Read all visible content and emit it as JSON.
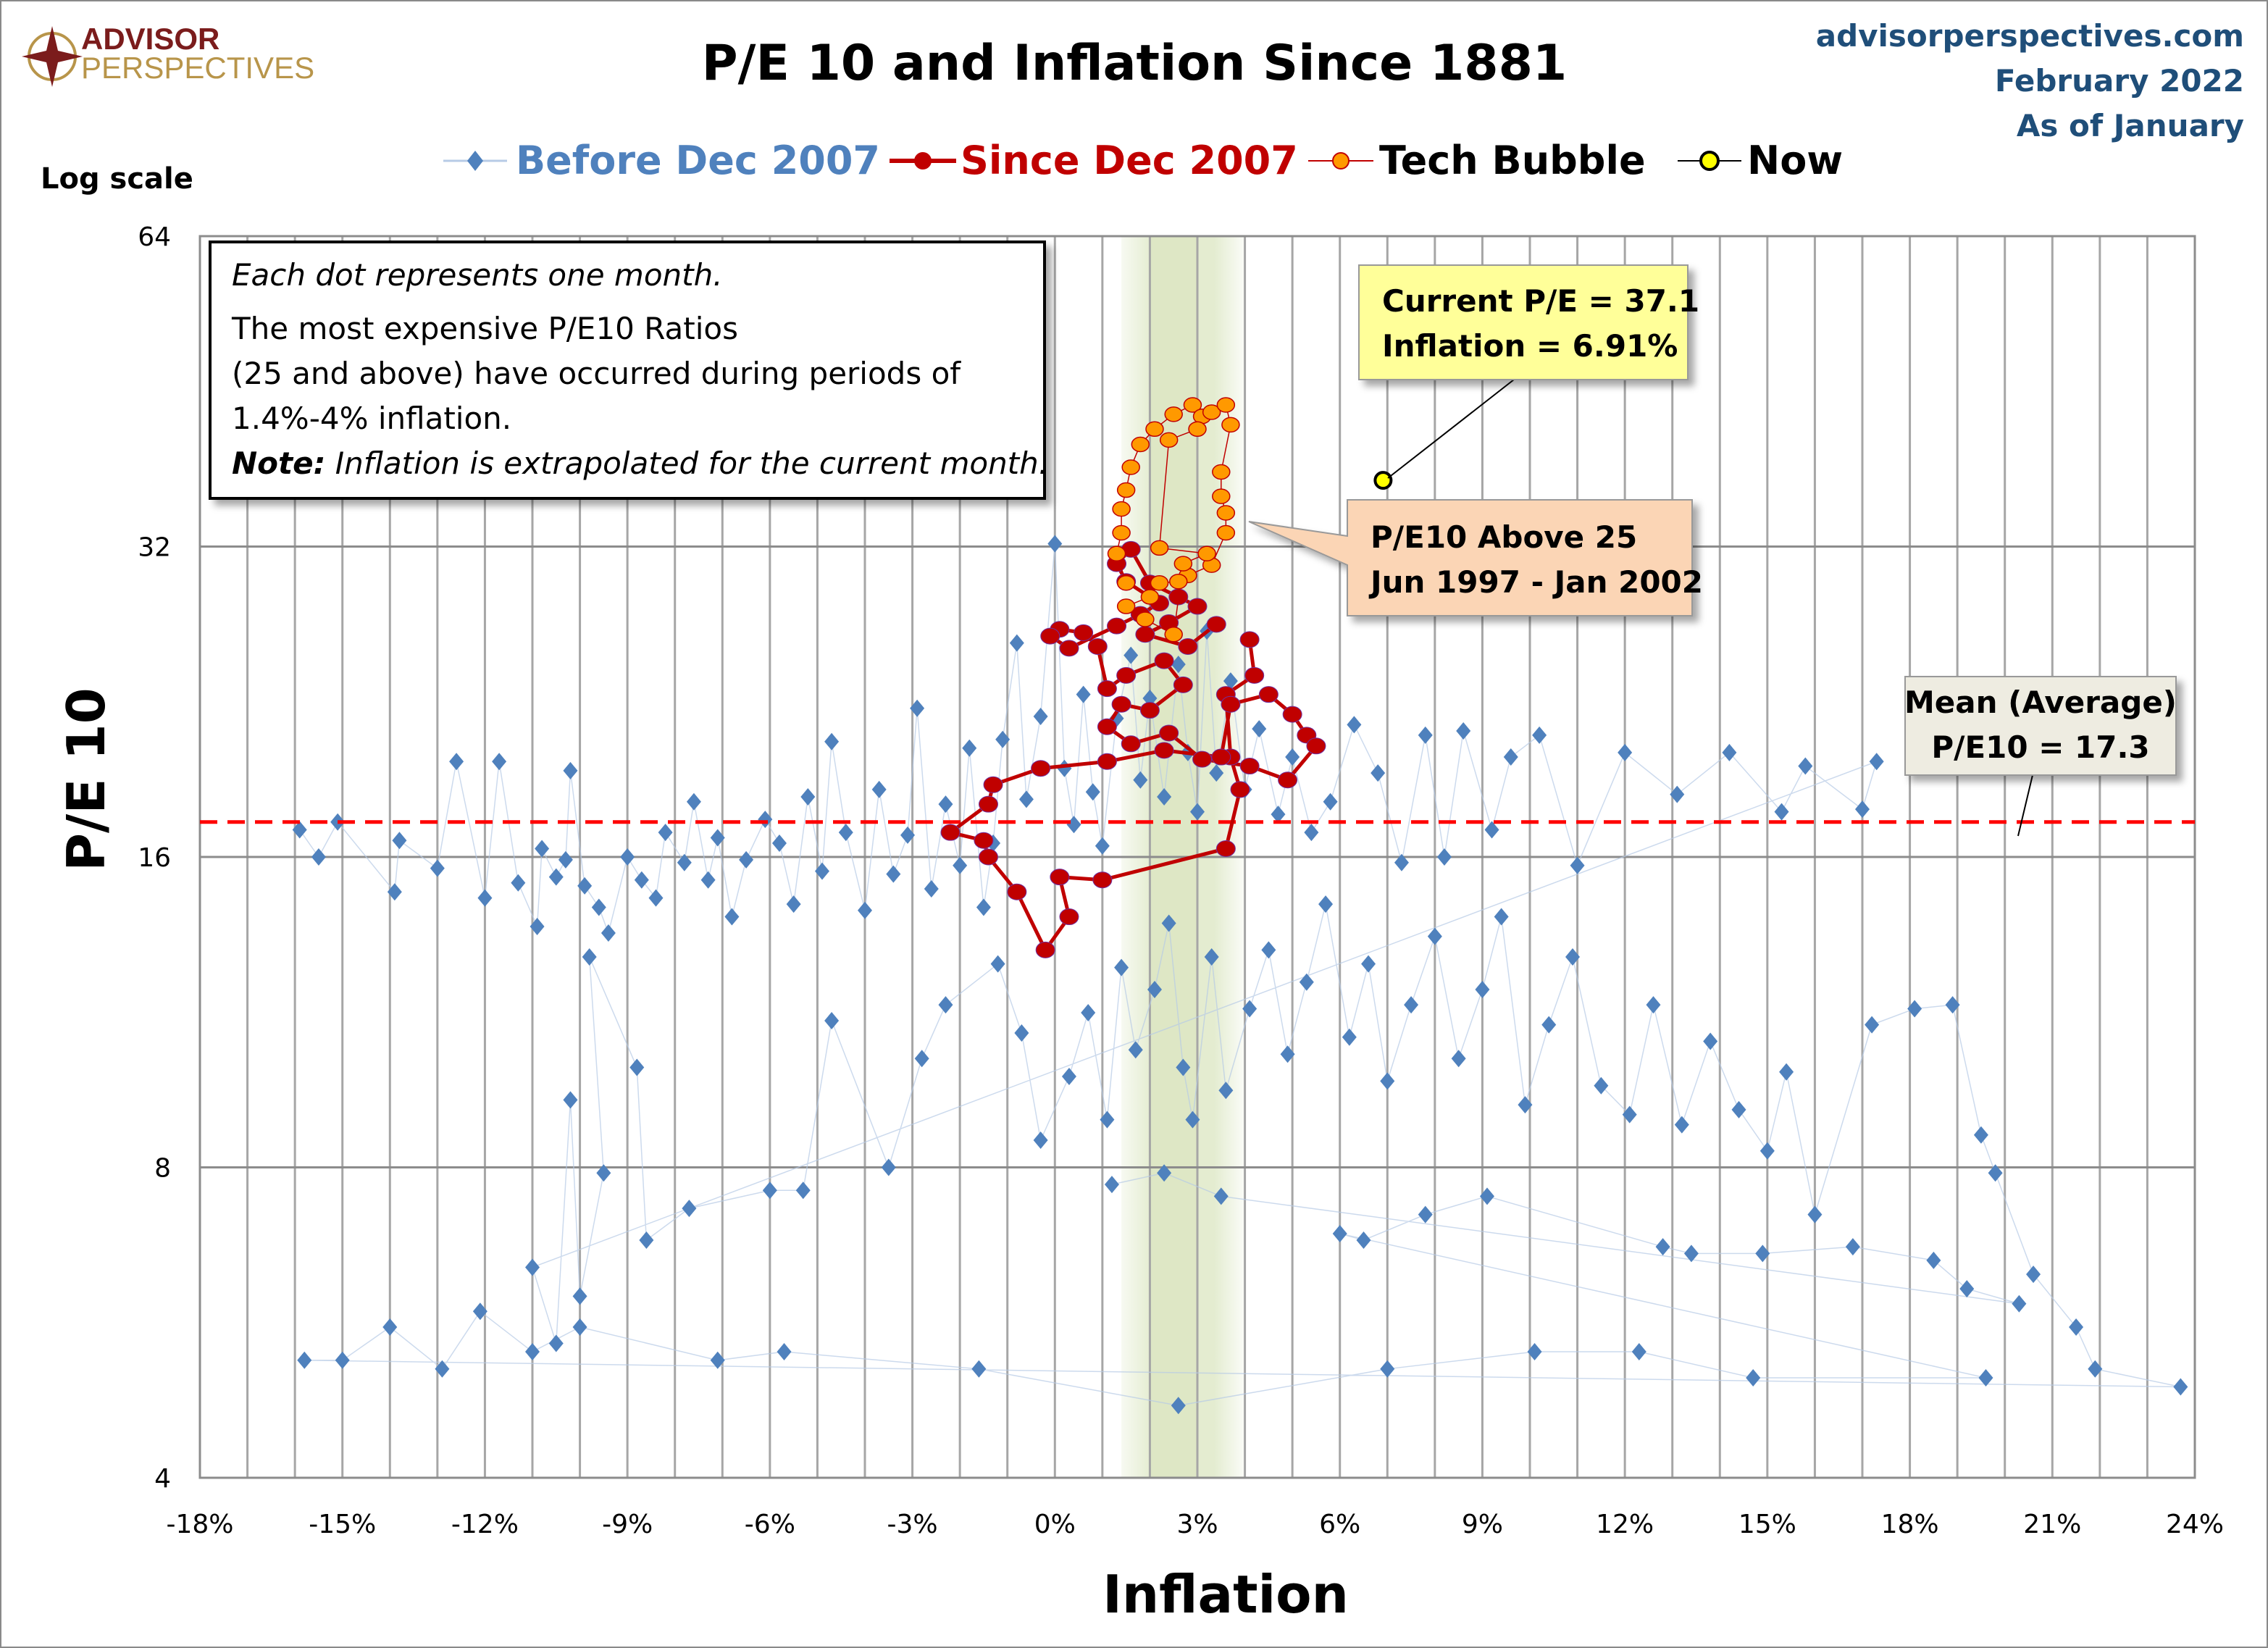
{
  "header": {
    "logo_line1": "ADVISOR",
    "logo_line2": "PERSPECTIVES",
    "site": "advisorperspectives.com",
    "date": "February 2022",
    "as_of": "As of January"
  },
  "colors": {
    "before": "#4f81bd",
    "since": "#c00000",
    "tech": "#ff9900",
    "now": "#ffff00",
    "mean_line": "#ff0000",
    "band": "#d8e4bc",
    "site_text": "#1f4e79",
    "logo_red": "#7b1c1c",
    "logo_gold": "#b8954a"
  },
  "annotations": {
    "box_line1": "Each dot represents one month.",
    "box_line2": "The most expensive P/E10 Ratios",
    "box_line3": "(25 and above) have occurred during periods of",
    "box_line4": "1.4%-4% inflation.",
    "box_note_label": "Note:",
    "box_note_text": " Inflation is extrapolated for the current month.",
    "current_line1": "Current P/E = 37.1",
    "current_line2": "Inflation = 6.91%",
    "bubble_line1": "P/E10 Above 25",
    "bubble_line2": "Jun 1997 - Jan 2002",
    "mean_line1": "Mean (Average)",
    "mean_line2": "P/E10 = 17.3"
  },
  "chart_data": {
    "type": "scatter",
    "title": "P/E 10 and Inflation Since 1881",
    "xlabel": "Inflation",
    "ylabel": "P/E 10",
    "y_scale_note": "Log scale",
    "y_scale": "log2",
    "xlim": [
      -18,
      24
    ],
    "ylim": [
      4,
      64
    ],
    "x_ticks": [
      "-18%",
      "-15%",
      "-12%",
      "-9%",
      "-6%",
      "-3%",
      "0%",
      "3%",
      "6%",
      "9%",
      "12%",
      "15%",
      "18%",
      "21%",
      "24%"
    ],
    "x_tick_values": [
      -18,
      -15,
      -12,
      -9,
      -6,
      -3,
      0,
      3,
      6,
      9,
      12,
      15,
      18,
      21,
      24
    ],
    "y_ticks": [
      "4",
      "8",
      "16",
      "32",
      "64"
    ],
    "y_tick_values": [
      4,
      8,
      16,
      32,
      64
    ],
    "grid": true,
    "legend_position": "top",
    "highlight_band": {
      "from": 1.4,
      "to": 4.0,
      "core_from": 2.0,
      "core_to": 3.0
    },
    "mean": 17.3,
    "series": [
      {
        "name": "Before Dec 2007",
        "marker": "diamond",
        "points": [
          [
            -15.9,
            17.0
          ],
          [
            -15.5,
            16.0
          ],
          [
            -15.1,
            17.3
          ],
          [
            -13.9,
            14.8
          ],
          [
            -13.8,
            16.6
          ],
          [
            -13.0,
            15.6
          ],
          [
            -12.6,
            19.8
          ],
          [
            -12.0,
            14.6
          ],
          [
            -11.7,
            19.8
          ],
          [
            -11.3,
            15.1
          ],
          [
            -10.9,
            13.7
          ],
          [
            -10.8,
            16.3
          ],
          [
            -10.5,
            15.3
          ],
          [
            -10.3,
            15.9
          ],
          [
            -10.2,
            19.4
          ],
          [
            -9.9,
            15.0
          ],
          [
            -9.6,
            14.3
          ],
          [
            -9.4,
            13.5
          ],
          [
            -9.0,
            16.0
          ],
          [
            -8.7,
            15.2
          ],
          [
            -8.4,
            14.6
          ],
          [
            -8.2,
            16.9
          ],
          [
            -7.8,
            15.8
          ],
          [
            -7.6,
            18.1
          ],
          [
            -7.3,
            15.2
          ],
          [
            -7.1,
            16.7
          ],
          [
            -6.8,
            14.0
          ],
          [
            -6.5,
            15.9
          ],
          [
            -6.1,
            17.4
          ],
          [
            -5.8,
            16.5
          ],
          [
            -5.5,
            14.4
          ],
          [
            -5.2,
            18.3
          ],
          [
            -4.9,
            15.5
          ],
          [
            -4.7,
            20.7
          ],
          [
            -4.4,
            16.9
          ],
          [
            -4.0,
            14.2
          ],
          [
            -3.7,
            18.6
          ],
          [
            -3.4,
            15.4
          ],
          [
            -3.1,
            16.8
          ],
          [
            -2.9,
            22.3
          ],
          [
            -2.6,
            14.9
          ],
          [
            -2.3,
            18.0
          ],
          [
            -2.0,
            15.7
          ],
          [
            -1.8,
            20.4
          ],
          [
            -1.5,
            14.3
          ],
          [
            -1.3,
            16.5
          ],
          [
            -1.1,
            20.8
          ],
          [
            -0.8,
            25.8
          ],
          [
            -0.6,
            18.2
          ],
          [
            -0.3,
            21.9
          ],
          [
            0.0,
            32.2
          ],
          [
            0.2,
            19.5
          ],
          [
            0.4,
            17.2
          ],
          [
            0.6,
            23.0
          ],
          [
            0.8,
            18.5
          ],
          [
            1.0,
            16.4
          ],
          [
            1.3,
            21.8
          ],
          [
            1.6,
            25.1
          ],
          [
            1.8,
            19.0
          ],
          [
            2.0,
            22.8
          ],
          [
            2.3,
            18.3
          ],
          [
            2.6,
            24.6
          ],
          [
            2.8,
            20.2
          ],
          [
            3.0,
            17.7
          ],
          [
            3.2,
            26.5
          ],
          [
            3.4,
            19.3
          ],
          [
            3.7,
            23.7
          ],
          [
            4.0,
            18.6
          ],
          [
            4.3,
            21.3
          ],
          [
            4.7,
            17.6
          ],
          [
            5.0,
            20.0
          ],
          [
            5.4,
            16.9
          ],
          [
            5.8,
            18.1
          ],
          [
            6.3,
            21.5
          ],
          [
            6.8,
            19.3
          ],
          [
            7.3,
            15.8
          ],
          [
            7.8,
            21.0
          ],
          [
            8.2,
            16.0
          ],
          [
            8.6,
            21.2
          ],
          [
            9.2,
            17.0
          ],
          [
            9.6,
            20.0
          ],
          [
            10.2,
            21.0
          ],
          [
            11.0,
            15.7
          ],
          [
            12.0,
            20.2
          ],
          [
            13.1,
            18.4
          ],
          [
            14.2,
            20.2
          ],
          [
            15.3,
            17.7
          ],
          [
            15.8,
            19.6
          ],
          [
            17.0,
            17.8
          ],
          [
            17.3,
            19.8
          ],
          [
            -11.0,
            6.4
          ],
          [
            -10.5,
            5.4
          ],
          [
            -10.2,
            9.3
          ],
          [
            -10.0,
            6.0
          ],
          [
            -9.5,
            7.9
          ],
          [
            -9.8,
            12.8
          ],
          [
            -8.8,
            10.0
          ],
          [
            -8.6,
            6.8
          ],
          [
            -7.7,
            7.3
          ],
          [
            -6.0,
            7.6
          ],
          [
            -5.3,
            7.6
          ],
          [
            -4.7,
            11.1
          ],
          [
            -3.5,
            8.0
          ],
          [
            -2.8,
            10.2
          ],
          [
            -2.3,
            11.5
          ],
          [
            -1.2,
            12.6
          ],
          [
            -0.7,
            10.8
          ],
          [
            -0.3,
            8.5
          ],
          [
            0.3,
            9.8
          ],
          [
            0.7,
            11.3
          ],
          [
            1.1,
            8.9
          ],
          [
            1.4,
            12.5
          ],
          [
            1.7,
            10.4
          ],
          [
            2.1,
            11.9
          ],
          [
            2.4,
            13.8
          ],
          [
            2.7,
            10.0
          ],
          [
            2.9,
            8.9
          ],
          [
            3.3,
            12.8
          ],
          [
            3.6,
            9.5
          ],
          [
            4.1,
            11.4
          ],
          [
            4.5,
            13.0
          ],
          [
            4.9,
            10.3
          ],
          [
            5.3,
            12.1
          ],
          [
            5.7,
            14.4
          ],
          [
            6.2,
            10.7
          ],
          [
            6.6,
            12.6
          ],
          [
            7.0,
            9.7
          ],
          [
            7.5,
            11.5
          ],
          [
            8.0,
            13.4
          ],
          [
            8.5,
            10.2
          ],
          [
            9.0,
            11.9
          ],
          [
            9.4,
            14.0
          ],
          [
            9.9,
            9.2
          ],
          [
            10.4,
            11.0
          ],
          [
            10.9,
            12.8
          ],
          [
            11.5,
            9.6
          ],
          [
            12.1,
            9.0
          ],
          [
            12.6,
            11.5
          ],
          [
            13.2,
            8.8
          ],
          [
            13.8,
            10.6
          ],
          [
            14.4,
            9.1
          ],
          [
            15.0,
            8.3
          ],
          [
            15.4,
            9.9
          ],
          [
            16.0,
            7.2
          ],
          [
            17.2,
            11.0
          ],
          [
            18.1,
            11.4
          ],
          [
            18.9,
            11.5
          ],
          [
            19.5,
            8.6
          ],
          [
            19.8,
            7.9
          ],
          [
            20.6,
            6.3
          ],
          [
            21.5,
            5.6
          ],
          [
            21.9,
            5.1
          ],
          [
            23.7,
            4.9
          ],
          [
            -15.8,
            5.2
          ],
          [
            -15.0,
            5.2
          ],
          [
            -14.0,
            5.6
          ],
          [
            -12.9,
            5.1
          ],
          [
            -12.1,
            5.8
          ],
          [
            -11.0,
            5.3
          ],
          [
            -10.0,
            5.6
          ],
          [
            -7.1,
            5.2
          ],
          [
            -5.7,
            5.3
          ],
          [
            -1.6,
            5.1
          ],
          [
            2.6,
            4.7
          ],
          [
            7.0,
            5.1
          ],
          [
            10.1,
            5.3
          ],
          [
            12.3,
            5.3
          ],
          [
            14.7,
            5.0
          ],
          [
            19.6,
            5.0
          ],
          [
            6.0,
            6.9
          ],
          [
            6.5,
            6.8
          ],
          [
            7.8,
            7.2
          ],
          [
            9.1,
            7.5
          ],
          [
            12.8,
            6.7
          ],
          [
            13.4,
            6.6
          ],
          [
            14.9,
            6.6
          ],
          [
            16.8,
            6.7
          ],
          [
            18.5,
            6.5
          ],
          [
            19.2,
            6.1
          ],
          [
            20.3,
            5.9
          ],
          [
            3.5,
            7.5
          ],
          [
            2.3,
            7.9
          ],
          [
            1.2,
            7.7
          ]
        ]
      },
      {
        "name": "Since Dec 2007",
        "marker": "circle",
        "points": [
          [
            4.1,
            26.0
          ],
          [
            4.2,
            24.0
          ],
          [
            3.6,
            23.0
          ],
          [
            3.7,
            20.0
          ],
          [
            3.9,
            18.6
          ],
          [
            3.6,
            16.3
          ],
          [
            1.0,
            15.2
          ],
          [
            0.1,
            15.3
          ],
          [
            0.3,
            14.0
          ],
          [
            -0.2,
            13.0
          ],
          [
            -0.8,
            14.8
          ],
          [
            -1.4,
            16.0
          ],
          [
            -1.5,
            16.6
          ],
          [
            -2.2,
            16.9
          ],
          [
            -1.4,
            18.0
          ],
          [
            -1.3,
            18.8
          ],
          [
            -0.3,
            19.5
          ],
          [
            1.1,
            19.8
          ],
          [
            2.3,
            20.3
          ],
          [
            3.5,
            20.0
          ],
          [
            3.7,
            22.5
          ],
          [
            4.5,
            23.0
          ],
          [
            5.0,
            22.0
          ],
          [
            5.3,
            21.0
          ],
          [
            5.5,
            20.5
          ],
          [
            4.9,
            19.0
          ],
          [
            4.1,
            19.6
          ],
          [
            3.1,
            19.9
          ],
          [
            2.4,
            21.1
          ],
          [
            1.6,
            20.6
          ],
          [
            1.1,
            21.4
          ],
          [
            1.4,
            22.5
          ],
          [
            2.0,
            22.2
          ],
          [
            2.7,
            23.5
          ],
          [
            2.3,
            24.8
          ],
          [
            1.5,
            24.0
          ],
          [
            1.1,
            23.3
          ],
          [
            0.9,
            25.6
          ],
          [
            0.6,
            26.4
          ],
          [
            0.1,
            26.6
          ],
          [
            -0.1,
            26.2
          ],
          [
            0.3,
            25.5
          ],
          [
            1.3,
            26.8
          ],
          [
            1.8,
            27.5
          ],
          [
            2.2,
            28.2
          ],
          [
            1.5,
            29.6
          ],
          [
            1.3,
            30.8
          ],
          [
            1.6,
            31.8
          ],
          [
            2.0,
            29.5
          ],
          [
            2.6,
            28.6
          ],
          [
            3.0,
            28.0
          ],
          [
            2.4,
            27.0
          ],
          [
            1.9,
            26.3
          ],
          [
            2.8,
            25.6
          ],
          [
            3.4,
            26.9
          ]
        ]
      },
      {
        "name": "Tech Bubble",
        "marker": "circle",
        "points": [
          [
            1.5,
            29.5
          ],
          [
            1.3,
            31.5
          ],
          [
            1.4,
            33.0
          ],
          [
            1.4,
            34.8
          ],
          [
            1.5,
            36.3
          ],
          [
            1.6,
            38.2
          ],
          [
            1.8,
            40.2
          ],
          [
            2.1,
            41.6
          ],
          [
            2.5,
            43.0
          ],
          [
            2.9,
            43.9
          ],
          [
            3.1,
            42.8
          ],
          [
            3.3,
            43.2
          ],
          [
            3.6,
            43.9
          ],
          [
            3.7,
            42.0
          ],
          [
            3.5,
            37.8
          ],
          [
            3.5,
            35.8
          ],
          [
            3.6,
            34.5
          ],
          [
            3.6,
            33.0
          ],
          [
            3.3,
            30.7
          ],
          [
            2.8,
            30.0
          ],
          [
            2.6,
            29.6
          ],
          [
            2.2,
            29.5
          ],
          [
            2.0,
            28.6
          ],
          [
            1.5,
            28.0
          ],
          [
            1.9,
            27.2
          ],
          [
            2.5,
            26.3
          ],
          [
            2.7,
            30.8
          ],
          [
            3.2,
            31.5
          ],
          [
            2.2,
            31.9
          ],
          [
            2.4,
            40.6
          ],
          [
            3.0,
            41.6
          ]
        ]
      },
      {
        "name": "Now",
        "marker": "circle",
        "points": [
          [
            6.91,
            37.1
          ]
        ]
      }
    ]
  }
}
